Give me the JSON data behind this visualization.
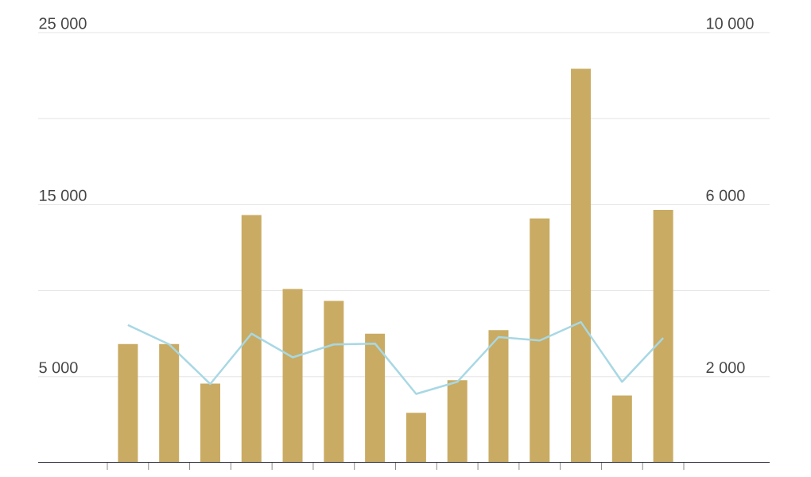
{
  "chart_data": {
    "type": "bar",
    "categories": [
      null,
      null,
      null,
      null,
      null,
      null,
      null,
      null,
      null,
      null,
      null,
      null,
      null,
      null
    ],
    "series": [
      {
        "color": "#c9ab63",
        "values": [
          6900,
          6900,
          4600,
          14400,
          10100,
          9400,
          7500,
          2900,
          4800,
          7700,
          14200,
          22900,
          3900,
          14700
        ]
      },
      {
        "type": "line",
        "axis": "y2",
        "color": "#a8d8e4",
        "values": [
          3200,
          2750,
          1830,
          3000,
          2450,
          2750,
          2770,
          1600,
          1880,
          2920,
          2840,
          3270,
          1880,
          2900
        ]
      }
    ],
    "ylim": [
      0,
      25000
    ],
    "yticks": [
      {
        "value": 0,
        "label": null
      },
      {
        "value": 5000,
        "label": "5 000"
      },
      {
        "value": 10000,
        "label": null
      },
      {
        "value": 15000,
        "label": "15 000"
      },
      {
        "value": 20000,
        "label": null
      },
      {
        "value": 25000,
        "label": "25 000"
      }
    ],
    "y2lim": [
      0,
      10000
    ],
    "y2ticks": [
      {
        "value": 0,
        "label": null
      },
      {
        "value": 2000,
        "label": "2 000"
      },
      {
        "value": 4000,
        "label": null
      },
      {
        "value": 6000,
        "label": "6 000"
      },
      {
        "value": 8000,
        "label": null
      },
      {
        "value": 10000,
        "label": "10 000"
      }
    ],
    "grid": "y"
  }
}
